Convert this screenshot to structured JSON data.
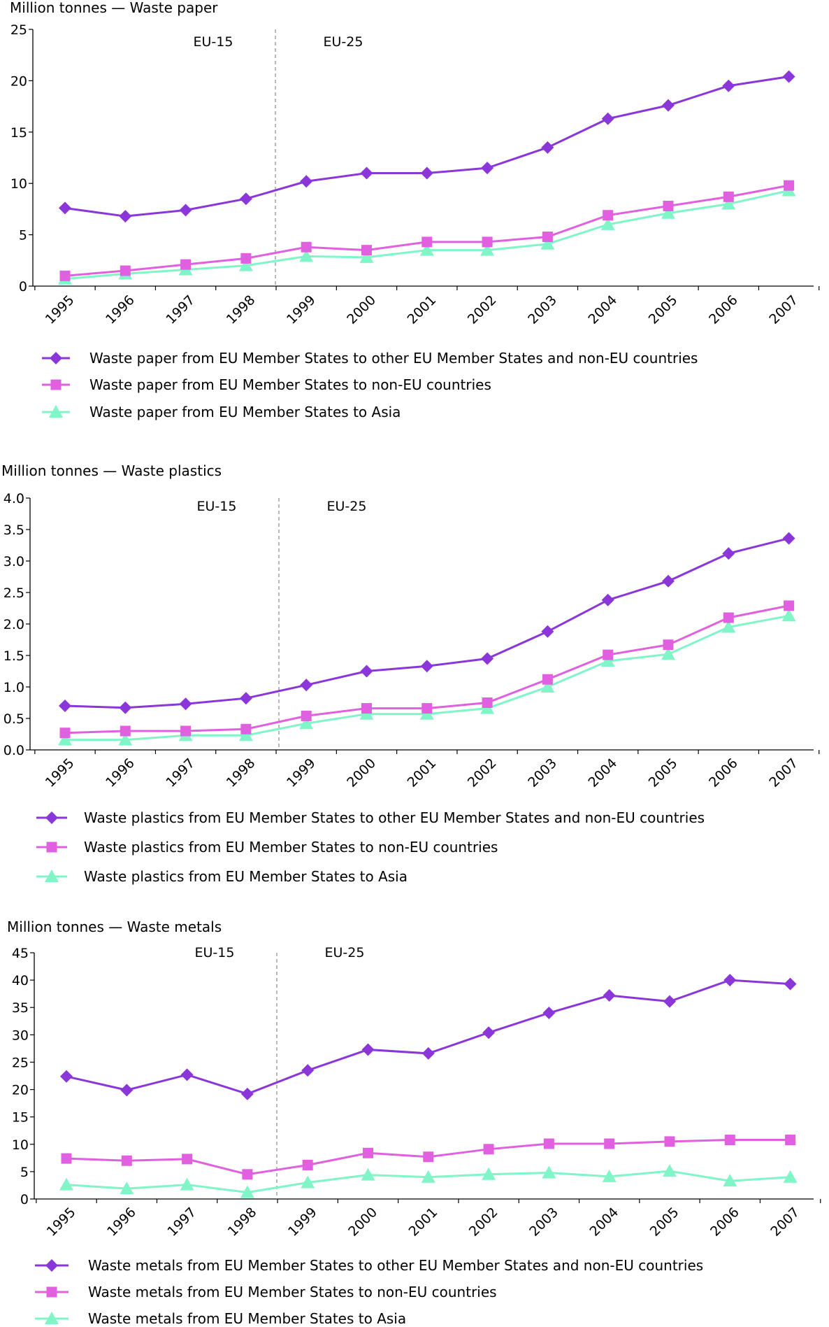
{
  "chart_data": [
    {
      "type": "line",
      "title": "Million tonnes — Waste paper",
      "ylim": [
        0,
        25
      ],
      "yticks": [
        "0",
        "5",
        "10",
        "15",
        "20",
        "25"
      ],
      "yticks_values": [
        0,
        5,
        10,
        15,
        20,
        25
      ],
      "categories": [
        "1995",
        "1996",
        "1997",
        "1998",
        "1999",
        "2000",
        "2001",
        "2002",
        "2003",
        "2004",
        "2005",
        "2006",
        "2007"
      ],
      "region_labels": [
        "EU-15",
        "EU-25"
      ],
      "series": [
        {
          "name": "Waste paper from EU Member States to other EU Member States and non-EU countries",
          "color": "#8b36d9",
          "marker": "diamond",
          "values": [
            7.6,
            6.8,
            7.4,
            8.5,
            10.2,
            11.0,
            11.0,
            11.5,
            13.5,
            16.3,
            17.6,
            19.5,
            20.4
          ]
        },
        {
          "name": "Waste paper from EU Member States to non-EU countries",
          "color": "#e060e0",
          "marker": "square",
          "values": [
            1.0,
            1.5,
            2.1,
            2.7,
            3.8,
            3.5,
            4.3,
            4.3,
            4.8,
            6.9,
            7.8,
            8.7,
            9.8
          ]
        },
        {
          "name": "Waste paper from EU Member States to Asia",
          "color": "#7ff5c8",
          "marker": "triangle",
          "values": [
            0.7,
            1.2,
            1.6,
            2.0,
            2.9,
            2.8,
            3.5,
            3.5,
            4.1,
            6.0,
            7.1,
            8.0,
            9.3
          ]
        }
      ]
    },
    {
      "type": "line",
      "title": "Million tonnes — Waste plastics",
      "ylim": [
        0,
        4
      ],
      "yticks": [
        "0.0",
        "0.5",
        "1.0",
        "1.5",
        "2.0",
        "2.5",
        "3.0",
        "3.5",
        "4.0"
      ],
      "yticks_values": [
        0,
        0.5,
        1.0,
        1.5,
        2.0,
        2.5,
        3.0,
        3.5,
        4.0
      ],
      "categories": [
        "1995",
        "1996",
        "1997",
        "1998",
        "1999",
        "2000",
        "2001",
        "2002",
        "2003",
        "2004",
        "2005",
        "2006",
        "2007"
      ],
      "region_labels": [
        "EU-15",
        "EU-25"
      ],
      "series": [
        {
          "name": "Waste plastics from EU Member States to other EU Member States and non-EU countries",
          "color": "#8b36d9",
          "marker": "diamond",
          "values": [
            0.7,
            0.67,
            0.73,
            0.82,
            1.03,
            1.25,
            1.33,
            1.45,
            1.88,
            2.38,
            2.68,
            3.12,
            3.36
          ]
        },
        {
          "name": "Waste plastics from EU Member States to non-EU countries",
          "color": "#e060e0",
          "marker": "square",
          "values": [
            0.27,
            0.3,
            0.3,
            0.33,
            0.54,
            0.66,
            0.66,
            0.75,
            1.12,
            1.51,
            1.67,
            2.1,
            2.29
          ]
        },
        {
          "name": "Waste plastics from EU Member States to Asia",
          "color": "#7ff5c8",
          "marker": "triangle",
          "values": [
            0.16,
            0.16,
            0.23,
            0.23,
            0.42,
            0.57,
            0.57,
            0.66,
            1.0,
            1.41,
            1.52,
            1.95,
            2.13
          ]
        }
      ]
    },
    {
      "type": "line",
      "title": "Million tonnes — Waste metals",
      "ylim": [
        0,
        45
      ],
      "yticks": [
        "0",
        "5",
        "10",
        "15",
        "20",
        "25",
        "30",
        "35",
        "40",
        "45"
      ],
      "yticks_values": [
        0,
        5,
        10,
        15,
        20,
        25,
        30,
        35,
        40,
        45
      ],
      "categories": [
        "1995",
        "1996",
        "1997",
        "1998",
        "1999",
        "2000",
        "2001",
        "2002",
        "2003",
        "2004",
        "2005",
        "2006",
        "2007"
      ],
      "region_labels": [
        "EU-15",
        "EU-25"
      ],
      "series": [
        {
          "name": "Waste metals from EU Member States to other EU Member States and non-EU countries",
          "color": "#8b36d9",
          "marker": "diamond",
          "values": [
            22.4,
            19.9,
            22.7,
            19.2,
            23.5,
            27.3,
            26.6,
            30.4,
            34.0,
            37.2,
            36.1,
            40.0,
            39.3
          ]
        },
        {
          "name": "Waste metals from EU Member States to non-EU countries",
          "color": "#e060e0",
          "marker": "square",
          "values": [
            7.4,
            7.0,
            7.3,
            4.5,
            6.2,
            8.4,
            7.7,
            9.1,
            10.1,
            10.1,
            10.5,
            10.8,
            10.8
          ]
        },
        {
          "name": "Waste metals from EU Member States to Asia",
          "color": "#7ff5c8",
          "marker": "triangle",
          "values": [
            2.6,
            1.9,
            2.6,
            1.2,
            3.0,
            4.4,
            4.0,
            4.5,
            4.8,
            4.1,
            5.1,
            3.3,
            4.0
          ]
        }
      ]
    }
  ]
}
